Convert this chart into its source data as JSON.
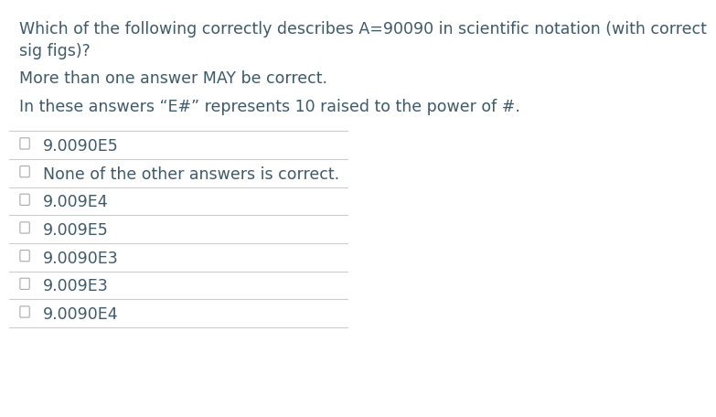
{
  "title_line1": "Which of the following correctly describes A=90090 in scientific notation (with correct",
  "title_line2": "sig figs)?",
  "subtitle1": "More than one answer MAY be correct.",
  "subtitle2": "In these answers “E#” represents 10 raised to the power of #.",
  "options": [
    "9.0090E5",
    "None of the other answers is correct.",
    "9.009E4",
    "9.009E5",
    "9.0090E3",
    "9.009E3",
    "9.0090E4"
  ],
  "bg_color": "#ffffff",
  "text_color": "#3d5a6b",
  "line_color": "#cccccc",
  "checkbox_color": "#ffffff",
  "checkbox_edge_color": "#aaaaaa",
  "title_fontsize": 12.5,
  "option_fontsize": 12.5,
  "subtitle_fontsize": 12.5
}
